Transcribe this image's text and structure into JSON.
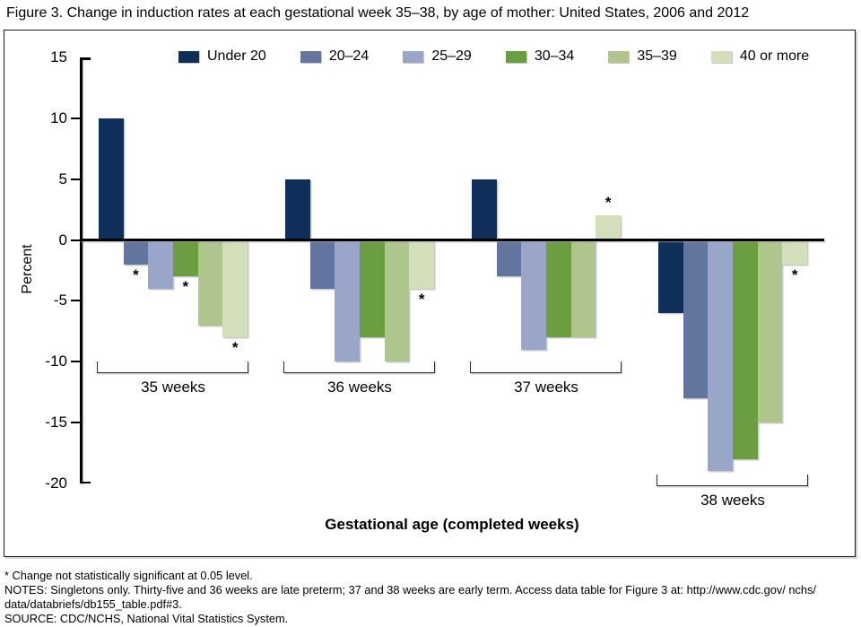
{
  "figure": {
    "title": "Figure 3. Change in induction rates at each gestational week 35–38, by age of mother: United States, 2006 and 2012",
    "footnotes": [
      "* Change not statistically significant at 0.05 level.",
      "NOTES: Singletons only. Thirty-five and 36 weeks are late preterm; 37 and 38 weeks are early term. Access data table for Figure 3 at: http://www.cdc.gov/ nchs/",
      "data/databriefs/db155_table.pdf#3.",
      "SOURCE: CDC/NCHS, National Vital Statistics System."
    ]
  },
  "chart_data": {
    "type": "bar",
    "title": "Figure 3. Change in induction rates at each gestational week 35–38, by age of mother: United States, 2006 and 2012",
    "xlabel": "Gestational age (completed weeks)",
    "ylabel": "Percent",
    "ylim": [
      -20,
      15
    ],
    "yticks": [
      15,
      10,
      5,
      0,
      -5,
      -10,
      -15,
      -20
    ],
    "grid": false,
    "legend_position": "top",
    "categories": [
      "35 weeks",
      "36 weeks",
      "37 weeks",
      "38 weeks"
    ],
    "series": [
      {
        "name": "Under 20",
        "color": "#0d2f5a",
        "values": [
          10,
          5,
          5,
          -6
        ],
        "not_significant": [
          false,
          false,
          false,
          false
        ]
      },
      {
        "name": "20–24",
        "color": "#62759e",
        "values": [
          -2,
          -4,
          -3,
          -13
        ],
        "not_significant": [
          true,
          false,
          false,
          false
        ]
      },
      {
        "name": "25–29",
        "color": "#9aa6c9",
        "values": [
          -4,
          -10,
          -9,
          -19
        ],
        "not_significant": [
          false,
          false,
          false,
          false
        ]
      },
      {
        "name": "30–34",
        "color": "#6a9e40",
        "values": [
          -3,
          -8,
          -8,
          -18
        ],
        "not_significant": [
          true,
          false,
          false,
          false
        ]
      },
      {
        "name": "35–39",
        "color": "#aec58b",
        "values": [
          -7,
          -10,
          -8,
          -15
        ],
        "not_significant": [
          false,
          false,
          false,
          false
        ]
      },
      {
        "name": "40 or more",
        "color": "#d3dfba",
        "values": [
          -8,
          -4,
          2,
          -2
        ],
        "not_significant": [
          true,
          true,
          true,
          true
        ]
      }
    ],
    "not_significant_marker": "*",
    "axis_color": "#000000",
    "background_color": "#ffffff"
  }
}
